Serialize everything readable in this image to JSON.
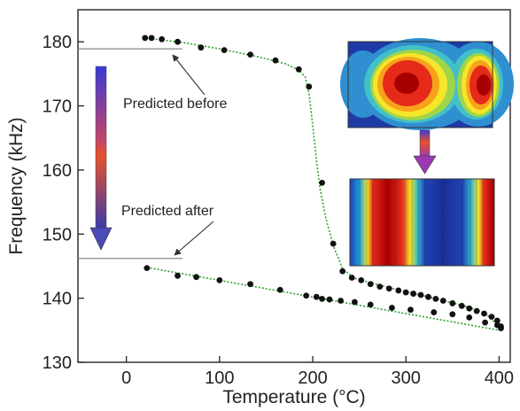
{
  "chart_data": {
    "type": "scatter",
    "title": "",
    "xlabel": "Temperature (°C)",
    "ylabel": "Frequency (kHz)",
    "xlim": [
      -52,
      412
    ],
    "ylim": [
      130,
      185
    ],
    "xticks": [
      0,
      100,
      200,
      300,
      400
    ],
    "yticks": [
      130,
      140,
      150,
      160,
      170,
      180
    ],
    "grid": false,
    "legend": "none",
    "colors": {
      "points": "#111111",
      "fit": "#2ca02c",
      "level_lines": "#888888",
      "arrow_top": "#3b3bd6",
      "arrow_mid": "#e2472a",
      "arrow_bottom": "#4a4ab8"
    },
    "series": [
      {
        "values_kind": "upper branch (before)",
        "points": [
          [
            20,
            180.6
          ],
          [
            27,
            180.6
          ],
          [
            38,
            180.4
          ],
          [
            55,
            180.0
          ],
          [
            80,
            179.1
          ],
          [
            105,
            178.7
          ],
          [
            133,
            178.0
          ],
          [
            160,
            177.1
          ],
          [
            185,
            175.7
          ],
          [
            196,
            173.0
          ],
          [
            210,
            158.0
          ],
          [
            222,
            148.5
          ],
          [
            232,
            144.2
          ],
          [
            242,
            143.2
          ],
          [
            252,
            142.8
          ],
          [
            262,
            142.2
          ],
          [
            272,
            141.8
          ],
          [
            282,
            141.5
          ],
          [
            292,
            141.2
          ],
          [
            300,
            140.9
          ],
          [
            308,
            140.7
          ],
          [
            316,
            140.5
          ],
          [
            324,
            140.2
          ],
          [
            332,
            139.9
          ],
          [
            340,
            139.6
          ],
          [
            350,
            139.2
          ],
          [
            360,
            138.8
          ],
          [
            368,
            138.4
          ],
          [
            376,
            138.0
          ],
          [
            384,
            137.6
          ],
          [
            392,
            137.1
          ],
          [
            398,
            136.5
          ],
          [
            402,
            135.6
          ]
        ],
        "fit": [
          [
            20,
            180.6
          ],
          [
            60,
            179.9
          ],
          [
            100,
            178.9
          ],
          [
            140,
            177.7
          ],
          [
            170,
            176.6
          ],
          [
            185,
            175.6
          ],
          [
            192,
            174.5
          ],
          [
            196,
            172.0
          ],
          [
            200,
            167.0
          ],
          [
            204,
            161.5
          ],
          [
            208,
            157.0
          ],
          [
            214,
            152.5
          ],
          [
            222,
            148.2
          ],
          [
            232,
            144.6
          ],
          [
            245,
            143.1
          ],
          [
            270,
            142.1
          ],
          [
            300,
            141.0
          ],
          [
            330,
            140.0
          ],
          [
            360,
            138.9
          ],
          [
            385,
            137.7
          ],
          [
            400,
            135.5
          ]
        ]
      },
      {
        "values_kind": "lower branch (after)",
        "points": [
          [
            22,
            144.7
          ],
          [
            55,
            143.5
          ],
          [
            75,
            143.3
          ],
          [
            100,
            142.8
          ],
          [
            133,
            142.2
          ],
          [
            165,
            141.3
          ],
          [
            193,
            140.4
          ],
          [
            204,
            140.2
          ],
          [
            210,
            139.9
          ],
          [
            218,
            139.8
          ],
          [
            230,
            139.6
          ],
          [
            245,
            139.4
          ],
          [
            262,
            139.0
          ],
          [
            285,
            138.5
          ],
          [
            305,
            138.2
          ],
          [
            330,
            137.8
          ],
          [
            350,
            137.5
          ],
          [
            368,
            137.0
          ],
          [
            385,
            136.2
          ],
          [
            398,
            135.8
          ],
          [
            402,
            135.3
          ]
        ],
        "fit": [
          [
            22,
            144.8
          ],
          [
            400,
            135.0
          ]
        ]
      }
    ],
    "reference_lines": [
      {
        "y": 178.9,
        "x_from": -52,
        "x_to": 60
      },
      {
        "y": 146.2,
        "x_from": -52,
        "x_to": 60
      }
    ],
    "annotations": {
      "predicted_before": "Predicted before",
      "predicted_after": "Predicted after"
    },
    "inset_images": [
      "mode-shape-before",
      "mode-shape-after"
    ]
  }
}
